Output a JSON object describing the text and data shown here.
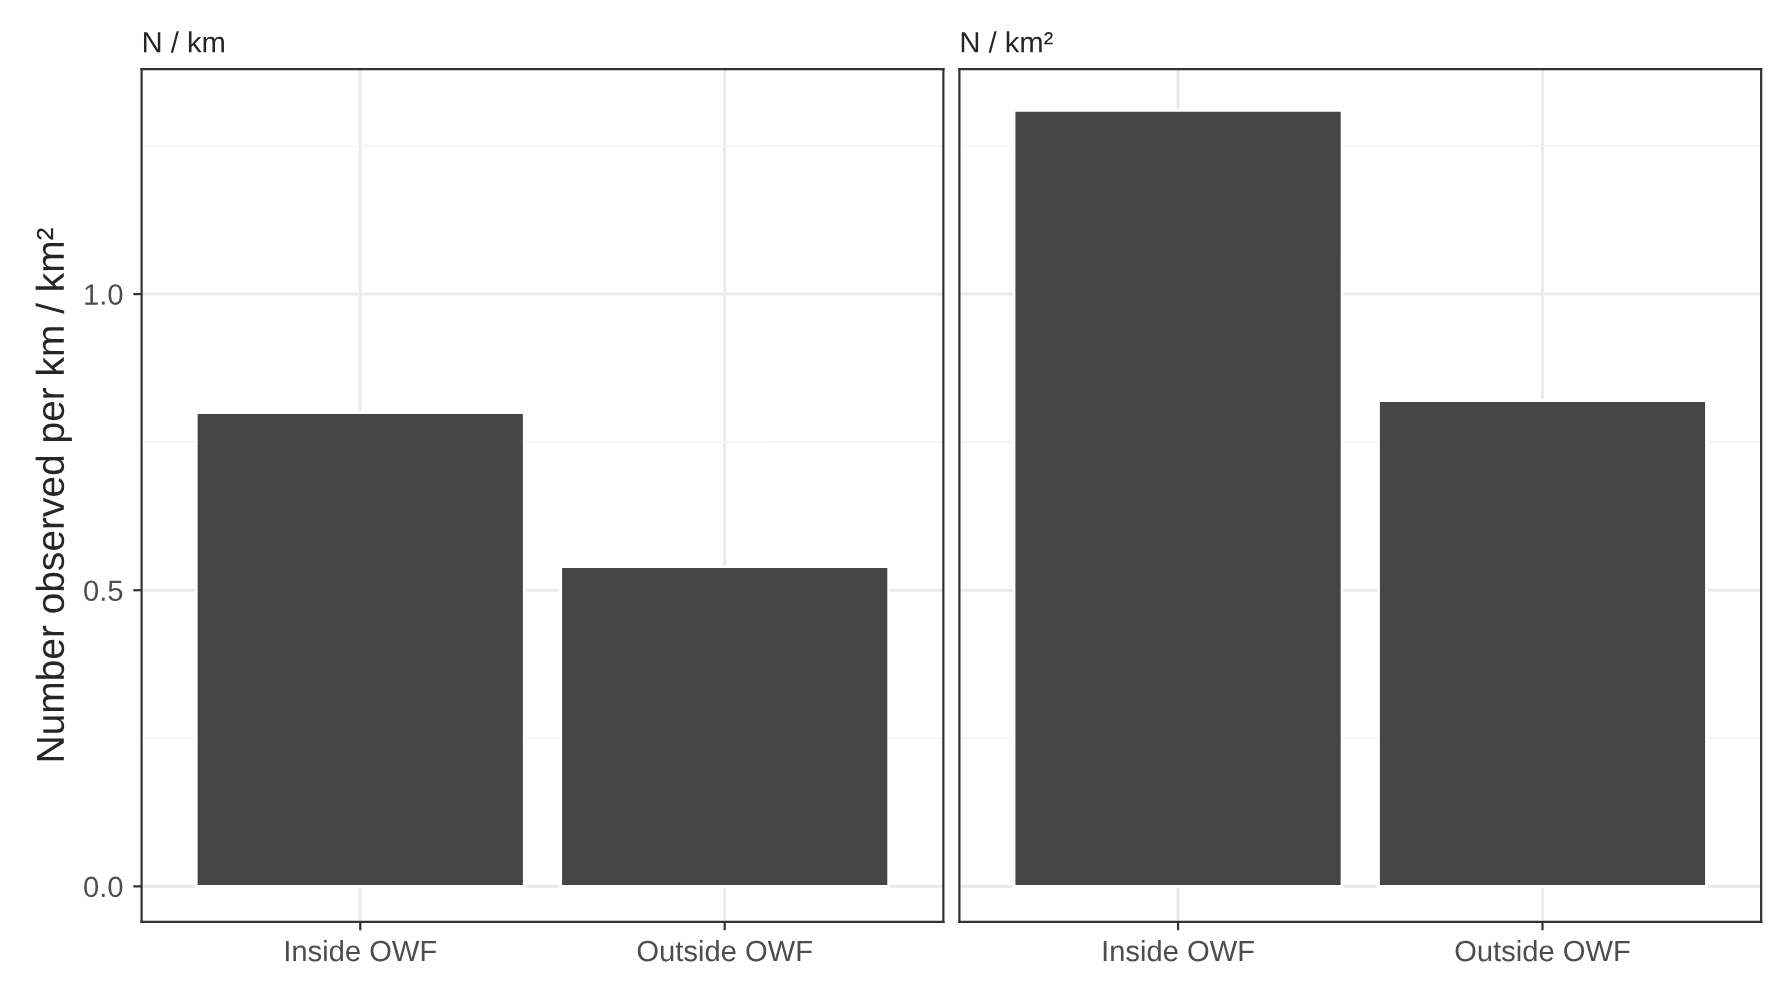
{
  "chart_data": [
    {
      "type": "bar",
      "title": "N / km",
      "ylabel": "Number observed per km / km²",
      "categories": [
        "Inside OWF",
        "Outside OWF"
      ],
      "values": [
        0.8,
        0.54
      ],
      "color": "#454545",
      "ylim": [
        -0.06,
        1.38
      ],
      "yticks": [
        {
          "value": 0.0,
          "label": "0.0"
        },
        {
          "value": 0.25,
          "label": null
        },
        {
          "value": 0.5,
          "label": "0.5"
        },
        {
          "value": 0.75,
          "label": null
        },
        {
          "value": 1.0,
          "label": "1.0"
        },
        {
          "value": 1.25,
          "label": null
        }
      ],
      "grid": true
    },
    {
      "type": "bar",
      "title": "N / km²",
      "categories": [
        "Inside OWF",
        "Outside OWF"
      ],
      "values": [
        1.31,
        0.82
      ],
      "color": "#454545",
      "ylim": [
        -0.06,
        1.38
      ],
      "yticks": [
        0.0,
        {
          "value": 0.25,
          "label": null
        },
        0.5,
        {
          "value": 0.75,
          "label": null
        },
        1.0,
        {
          "value": 1.25,
          "label": null
        }
      ],
      "grid": true,
      "tick_labels": "x"
    }
  ]
}
